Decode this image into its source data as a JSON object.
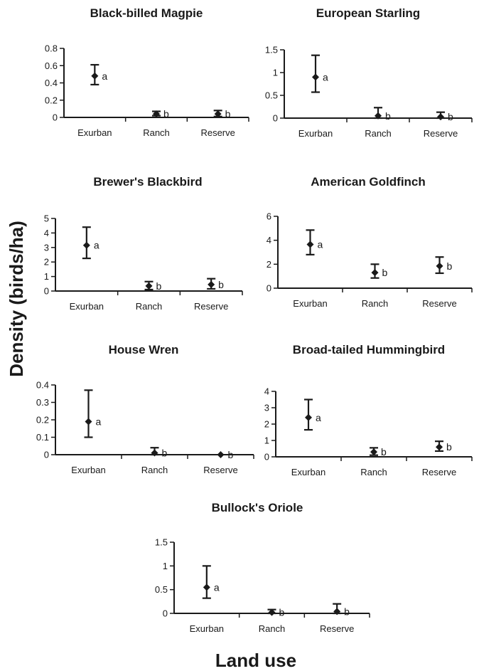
{
  "colors": {
    "ink": "#1a1a1a",
    "background": "#ffffff"
  },
  "figure": {
    "ylabel": "Density (birds/ha)",
    "xlabel": "Land use"
  },
  "chart_data": [
    {
      "type": "scatter",
      "title": "Black-billed Magpie",
      "categories": [
        "Exurban",
        "Ranch",
        "Reserve"
      ],
      "values": [
        0.48,
        0.04,
        0.04
      ],
      "error_low": [
        0.38,
        0.02,
        0.01
      ],
      "error_high": [
        0.61,
        0.07,
        0.08
      ],
      "labels": [
        "a",
        "b",
        "b"
      ],
      "yticks": [
        "0",
        "0.2",
        "0.4",
        "0.6",
        "0.8"
      ],
      "ylim": [
        0,
        0.8
      ]
    },
    {
      "type": "scatter",
      "title": "European Starling",
      "categories": [
        "Exurban",
        "Ranch",
        "Reserve"
      ],
      "values": [
        0.9,
        0.05,
        0.03
      ],
      "error_low": [
        0.57,
        0.0,
        0.0
      ],
      "error_high": [
        1.38,
        0.23,
        0.13
      ],
      "labels": [
        "a",
        "b",
        "b"
      ],
      "yticks": [
        "0",
        "0.5",
        "1",
        "1.5"
      ],
      "ylim": [
        0,
        1.5
      ]
    },
    {
      "type": "scatter",
      "title": "Brewer's Blackbird",
      "categories": [
        "Exurban",
        "Ranch",
        "Reserve"
      ],
      "values": [
        3.15,
        0.35,
        0.45
      ],
      "error_low": [
        2.25,
        0.1,
        0.15
      ],
      "error_high": [
        4.4,
        0.65,
        0.85
      ],
      "labels": [
        "a",
        "b",
        "b"
      ],
      "yticks": [
        "0",
        "1",
        "2",
        "3",
        "4",
        "5"
      ],
      "ylim": [
        0,
        5
      ]
    },
    {
      "type": "scatter",
      "title": "American Goldfinch",
      "categories": [
        "Exurban",
        "Ranch",
        "Reserve"
      ],
      "values": [
        3.65,
        1.3,
        1.85
      ],
      "error_low": [
        2.8,
        0.85,
        1.25
      ],
      "error_high": [
        4.85,
        2.0,
        2.6
      ],
      "labels": [
        "a",
        "b",
        "b"
      ],
      "yticks": [
        "0",
        "2",
        "4",
        "6"
      ],
      "ylim": [
        0,
        6
      ]
    },
    {
      "type": "scatter",
      "title": "House Wren",
      "categories": [
        "Exurban",
        "Ranch",
        "Reserve"
      ],
      "values": [
        0.19,
        0.01,
        0.0
      ],
      "error_low": [
        0.1,
        0.0,
        0.0
      ],
      "error_high": [
        0.37,
        0.04,
        0.0
      ],
      "labels": [
        "a",
        "b",
        "b"
      ],
      "yticks": [
        "0",
        "0.1",
        "0.2",
        "0.3",
        "0.4"
      ],
      "ylim": [
        0,
        0.4
      ]
    },
    {
      "type": "scatter",
      "title": "Broad-tailed Hummingbird",
      "categories": [
        "Exurban",
        "Ranch",
        "Reserve"
      ],
      "values": [
        2.4,
        0.3,
        0.6
      ],
      "error_low": [
        1.65,
        0.1,
        0.35
      ],
      "error_high": [
        3.5,
        0.55,
        0.95
      ],
      "labels": [
        "a",
        "b",
        "b"
      ],
      "yticks": [
        "0",
        "1",
        "2",
        "3",
        "4"
      ],
      "ylim": [
        0,
        4
      ]
    },
    {
      "type": "scatter",
      "title": "Bullock's Oriole",
      "categories": [
        "Exurban",
        "Ranch",
        "Reserve"
      ],
      "values": [
        0.55,
        0.02,
        0.04
      ],
      "error_low": [
        0.32,
        0.0,
        0.0
      ],
      "error_high": [
        1.0,
        0.08,
        0.2
      ],
      "labels": [
        "a",
        "b",
        "b"
      ],
      "yticks": [
        "0",
        "0.5",
        "1",
        "1.5"
      ],
      "ylim": [
        0,
        1.5
      ]
    }
  ]
}
